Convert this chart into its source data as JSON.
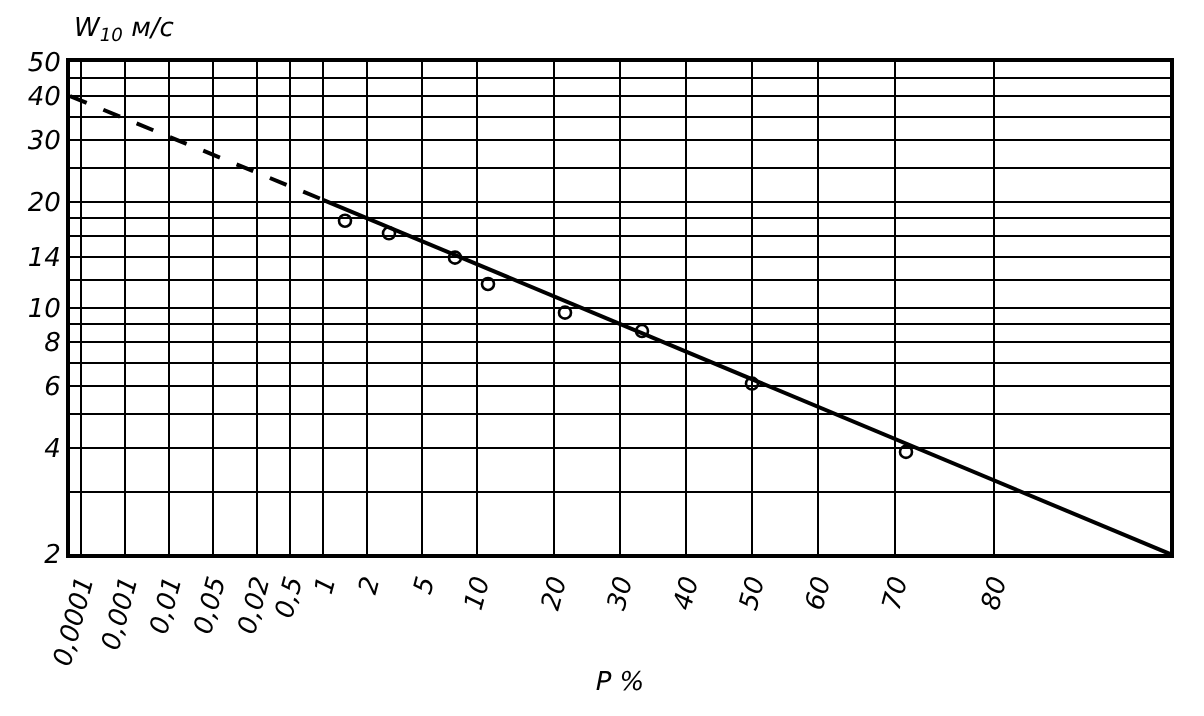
{
  "chart_data": {
    "type": "scatter",
    "ylabel": "W$_{10}$ м/с",
    "xlabel": "P %",
    "ylim": [
      2,
      50
    ],
    "log": "y",
    "grid": true,
    "categories": [
      null,
      "0,0001",
      null,
      null,
      null,
      "0,001",
      null,
      null,
      null,
      "0,01",
      null,
      null,
      null,
      "0,05",
      null,
      null,
      null,
      "0,02",
      null,
      null,
      "0,5",
      null,
      null,
      "1",
      null,
      null,
      null,
      "2",
      null,
      null,
      null,
      null,
      "5",
      null,
      null,
      null,
      null,
      "10",
      null,
      null,
      null,
      null,
      null,
      null,
      "20",
      null,
      null,
      null,
      null,
      null,
      "30",
      null,
      null,
      null,
      null,
      null,
      "40",
      null,
      null,
      null,
      null,
      null,
      "50",
      null,
      null,
      null,
      null,
      null,
      "60",
      null,
      null,
      null,
      null,
      null,
      null,
      "70",
      null,
      null,
      null,
      null,
      null,
      null,
      null,
      null,
      "80",
      null,
      null,
      null,
      null,
      null,
      null,
      null,
      null,
      null,
      null,
      null,
      null,
      null,
      null,
      null,
      null
    ],
    "yticks": [
      2,
      {
        "value": 3,
        "label": null
      },
      4,
      {
        "value": 5,
        "label": null
      },
      6,
      {
        "value": 7,
        "label": null
      },
      8,
      {
        "value": 9,
        "label": null
      },
      10,
      {
        "value": 12,
        "label": null
      },
      14,
      {
        "value": 16,
        "label": null
      },
      {
        "value": 18,
        "label": null
      },
      20,
      {
        "value": 25,
        "label": null
      },
      30,
      {
        "value": 35,
        "label": null
      },
      40,
      {
        "value": 45,
        "label": null
      },
      50
    ],
    "series": [
      {
        "color": "#000000",
        "marker": "circle",
        "values": [
          null,
          null,
          null,
          null,
          null,
          null,
          null,
          null,
          null,
          null,
          null,
          null,
          null,
          null,
          null,
          null,
          null,
          null,
          null,
          null,
          null,
          null,
          null,
          null,
          null,
          17.7,
          null,
          null,
          null,
          16.3,
          null,
          null,
          null,
          null,
          null,
          13.9,
          null,
          null,
          11.7,
          null,
          null,
          null,
          null,
          null,
          null,
          9.7,
          null,
          null,
          null,
          null,
          null,
          null,
          8.6,
          null,
          null,
          null,
          null,
          null,
          null,
          null,
          null,
          null,
          6.1,
          null,
          null,
          null,
          null,
          null,
          null,
          null,
          null,
          null,
          null,
          null,
          null,
          null,
          3.9,
          null,
          null,
          null,
          null,
          null,
          null,
          null,
          null,
          null,
          null,
          null,
          null,
          null,
          null,
          null,
          null,
          null,
          null,
          null,
          null,
          null,
          null,
          null,
          null
        ]
      },
      {
        "type": "line",
        "color": "#000000",
        "line_style": "dashed",
        "values": [
          40,
          null,
          null,
          null,
          null,
          null,
          null,
          null,
          null,
          null,
          null,
          null,
          null,
          null,
          null,
          null,
          null,
          null,
          null,
          null,
          null,
          null,
          null,
          20.3,
          null,
          null,
          null,
          null,
          null,
          null,
          null,
          null,
          null,
          null,
          null,
          null,
          null,
          null,
          null,
          null,
          null,
          null,
          null,
          null,
          null,
          null,
          null,
          null,
          null,
          null,
          null,
          null,
          null,
          null,
          null,
          null,
          null,
          null,
          null,
          null,
          null,
          null,
          null,
          null,
          null,
          null,
          null,
          null,
          null,
          null,
          null,
          null,
          null,
          null,
          null,
          null,
          null,
          null,
          null,
          null,
          null,
          null,
          null,
          null,
          null,
          null,
          null,
          null,
          null,
          null,
          null,
          null,
          null,
          null,
          null,
          null,
          null,
          null,
          null,
          null,
          null
        ]
      },
      {
        "type": "line",
        "color": "#000000",
        "line_style": "solid",
        "values": [
          null,
          null,
          null,
          null,
          null,
          null,
          null,
          null,
          null,
          null,
          null,
          null,
          null,
          null,
          null,
          null,
          null,
          null,
          null,
          null,
          null,
          null,
          null,
          20.3,
          null,
          null,
          null,
          null,
          null,
          null,
          null,
          null,
          null,
          null,
          null,
          null,
          null,
          null,
          null,
          null,
          null,
          null,
          null,
          null,
          null,
          null,
          null,
          null,
          null,
          null,
          null,
          null,
          null,
          null,
          null,
          null,
          null,
          null,
          null,
          null,
          null,
          null,
          null,
          null,
          null,
          null,
          null,
          null,
          null,
          null,
          null,
          null,
          null,
          null,
          null,
          null,
          null,
          null,
          null,
          null,
          null,
          null,
          null,
          null,
          null,
          null,
          null,
          null,
          null,
          null,
          null,
          null,
          null,
          null,
          null,
          null,
          null,
          null,
          null,
          null,
          2
        ]
      }
    ]
  }
}
